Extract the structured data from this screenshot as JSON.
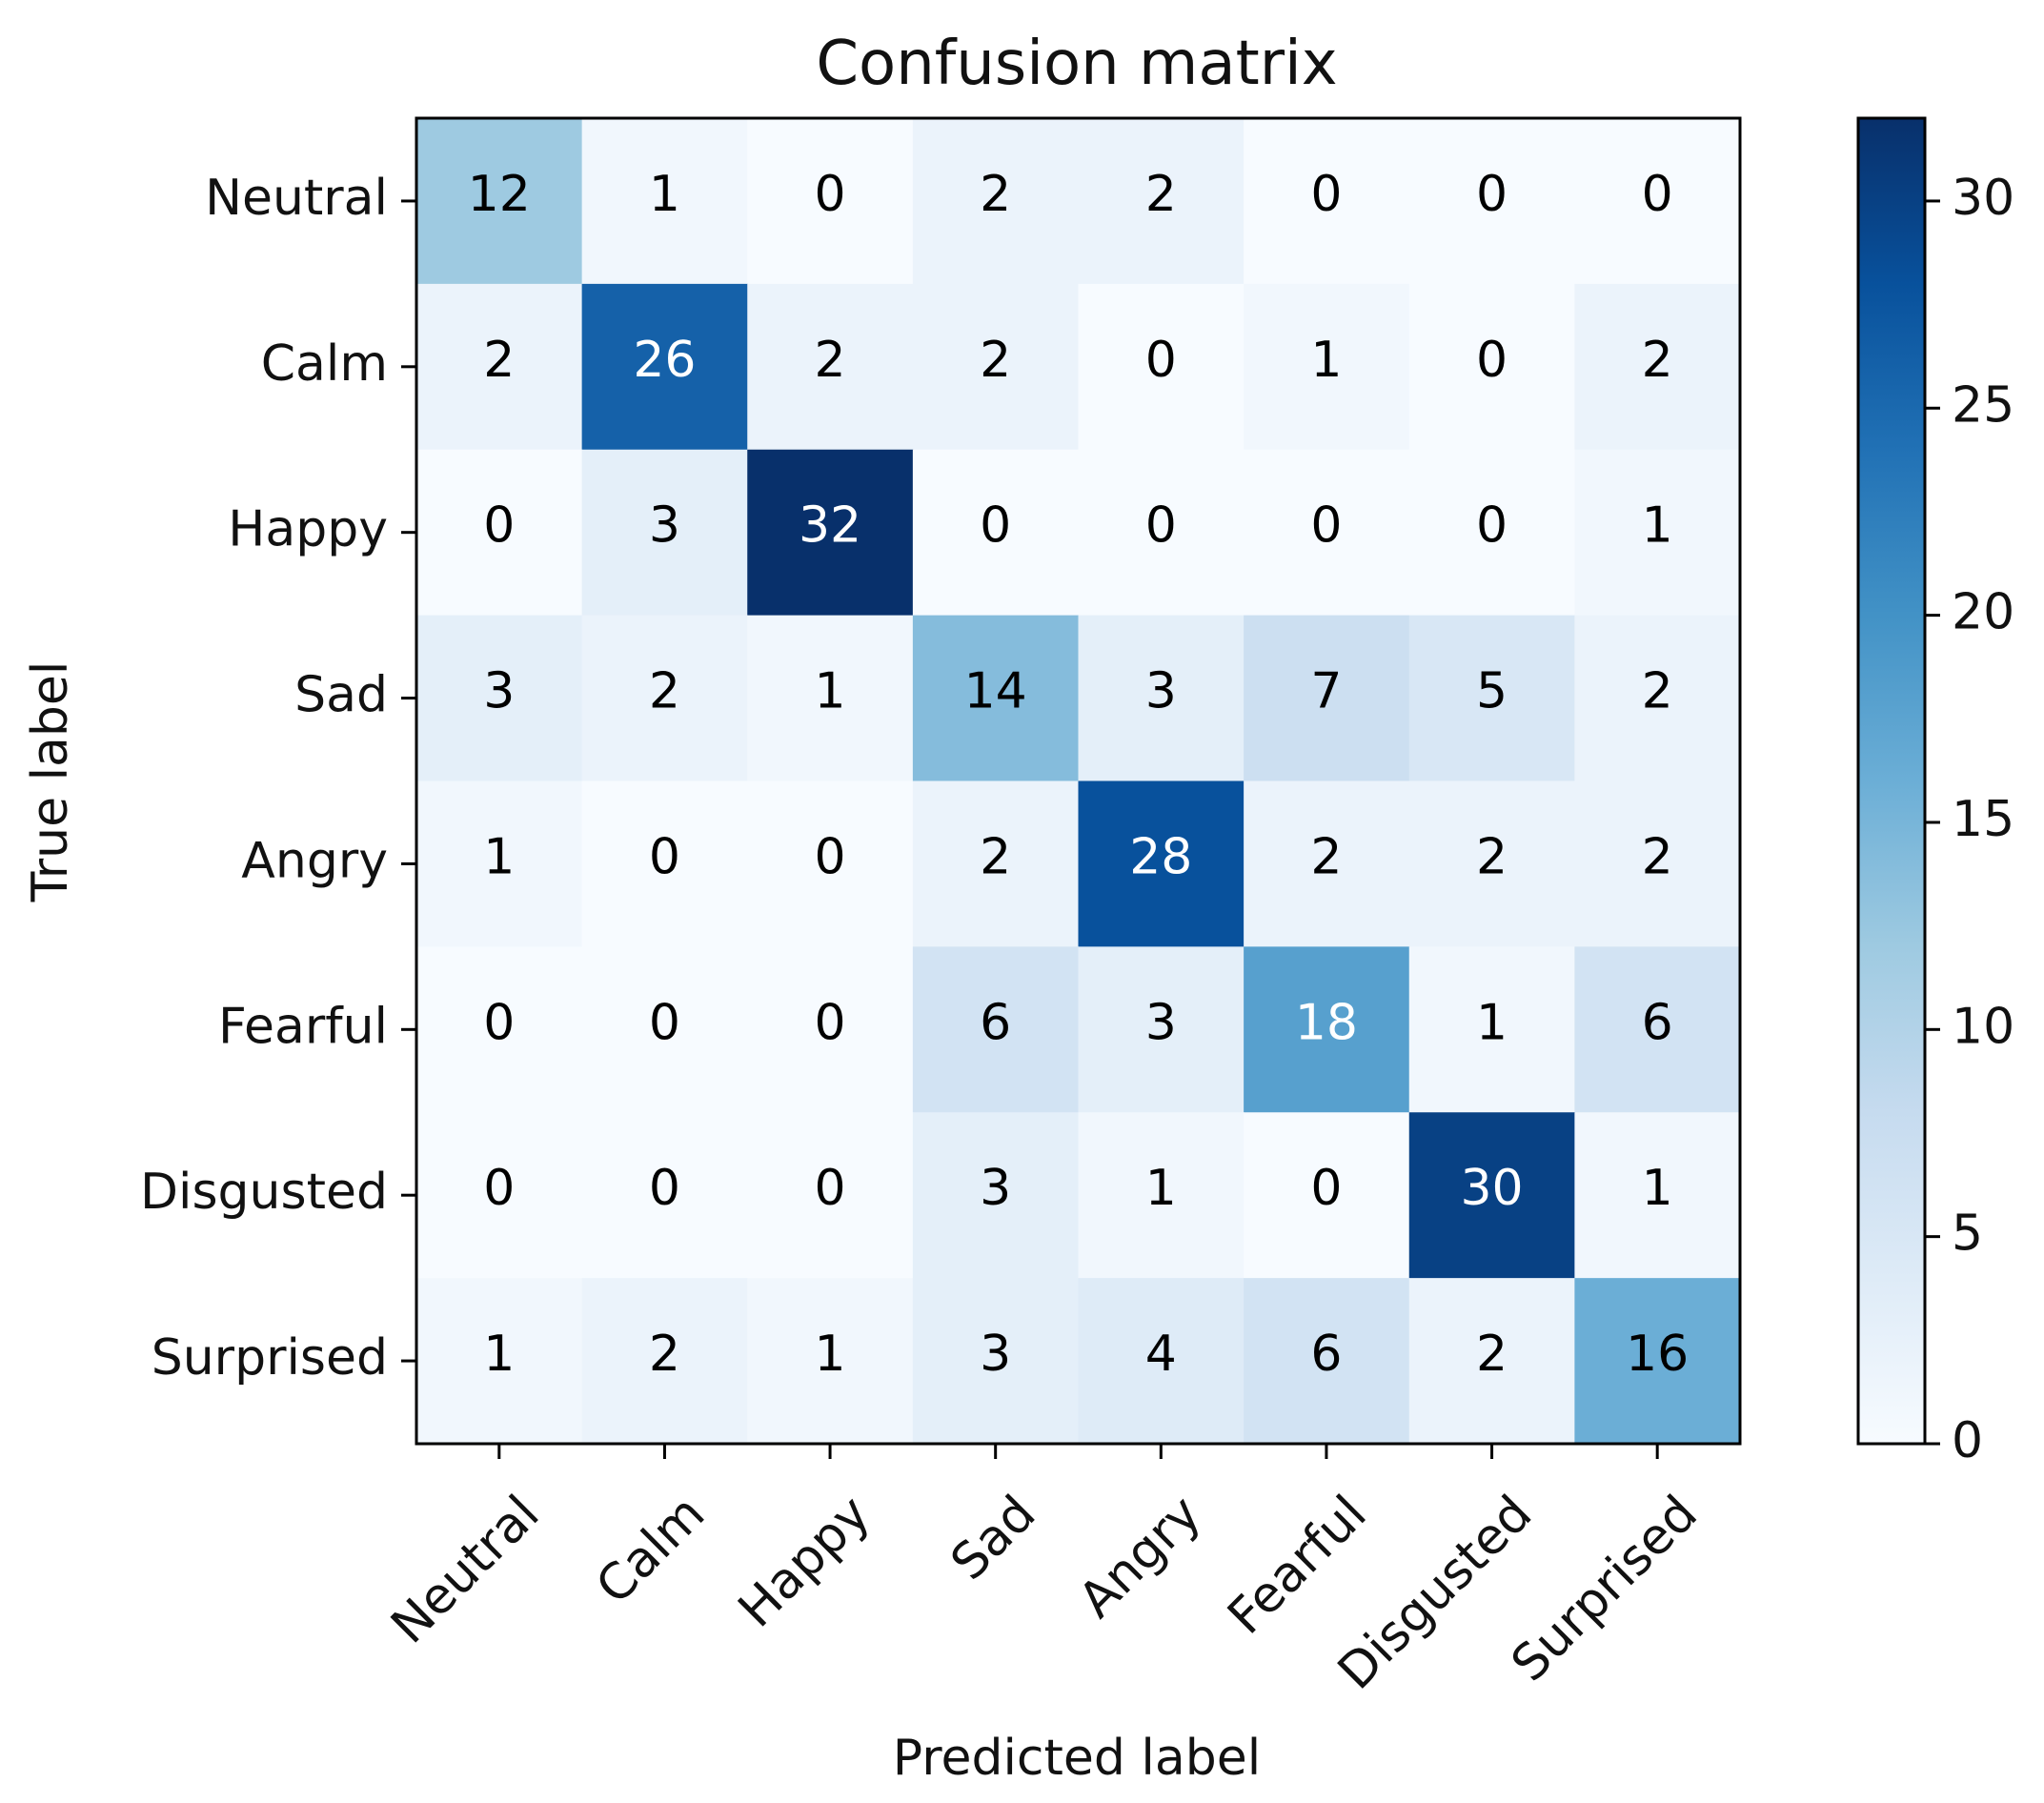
{
  "chart_data": {
    "type": "heatmap",
    "title": "Confusion matrix",
    "xlabel": "Predicted label",
    "ylabel": "True label",
    "x_categories": [
      "Neutral",
      "Calm",
      "Happy",
      "Sad",
      "Angry",
      "Fearful",
      "Disgusted",
      "Surprised"
    ],
    "y_categories": [
      "Neutral",
      "Calm",
      "Happy",
      "Sad",
      "Angry",
      "Fearful",
      "Disgusted",
      "Surprised"
    ],
    "values": [
      [
        12,
        1,
        0,
        2,
        2,
        0,
        0,
        0
      ],
      [
        2,
        26,
        2,
        2,
        0,
        1,
        0,
        2
      ],
      [
        0,
        3,
        32,
        0,
        0,
        0,
        0,
        1
      ],
      [
        3,
        2,
        1,
        14,
        3,
        7,
        5,
        2
      ],
      [
        1,
        0,
        0,
        2,
        28,
        2,
        2,
        2
      ],
      [
        0,
        0,
        0,
        6,
        3,
        18,
        1,
        6
      ],
      [
        0,
        0,
        0,
        3,
        1,
        0,
        30,
        1
      ],
      [
        1,
        2,
        1,
        3,
        4,
        6,
        2,
        16
      ]
    ],
    "colormap": "Blues",
    "colorbar": {
      "range": [
        0,
        32
      ],
      "ticks": [
        0,
        5,
        10,
        15,
        20,
        25,
        30
      ]
    },
    "text_color_threshold": 16,
    "text_colors": {
      "dark": "#000000",
      "light": "#ffffff"
    },
    "grid": false
  }
}
